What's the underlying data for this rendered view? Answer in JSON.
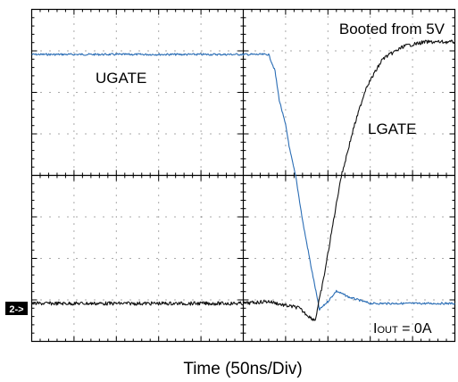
{
  "chart_data": {
    "type": "line",
    "title": "",
    "xlabel": "Time  (50ns/Div)",
    "ylabel": "",
    "grid": true,
    "x_divisions": 10,
    "y_divisions": 8,
    "annotations": {
      "top_right": "Booted from 5V",
      "upper_left": "UGATE",
      "right_mid": "LGATE",
      "bottom_right_prefix": "I",
      "bottom_right_subscript": "OUT",
      "bottom_right_suffix": " = 0A"
    },
    "channel_marker": "2->",
    "series": [
      {
        "name": "UGATE",
        "color": "#2a6db5",
        "x_div": [
          0,
          5.6,
          5.75,
          5.85,
          6.0,
          6.1,
          6.25,
          6.4,
          6.6,
          6.8,
          7.0,
          7.2,
          7.5,
          8.0,
          9.0,
          10.0
        ],
        "y_div": [
          6.0,
          6.0,
          5.6,
          4.9,
          4.3,
          3.7,
          3.0,
          2.0,
          0.9,
          -0.15,
          0.05,
          0.3,
          0.15,
          0.0,
          0.0,
          0.0
        ]
      },
      {
        "name": "LGATE",
        "color": "#111111",
        "x_div": [
          0,
          5.0,
          5.6,
          6.0,
          6.3,
          6.6,
          6.7,
          6.9,
          7.1,
          7.3,
          7.6,
          7.9,
          8.3,
          8.8,
          9.3,
          10.0
        ],
        "y_div": [
          0.0,
          0.0,
          0.05,
          -0.05,
          -0.1,
          -0.35,
          -0.4,
          0.6,
          1.8,
          3.0,
          4.2,
          5.2,
          5.9,
          6.2,
          6.3,
          6.3
        ]
      }
    ]
  }
}
